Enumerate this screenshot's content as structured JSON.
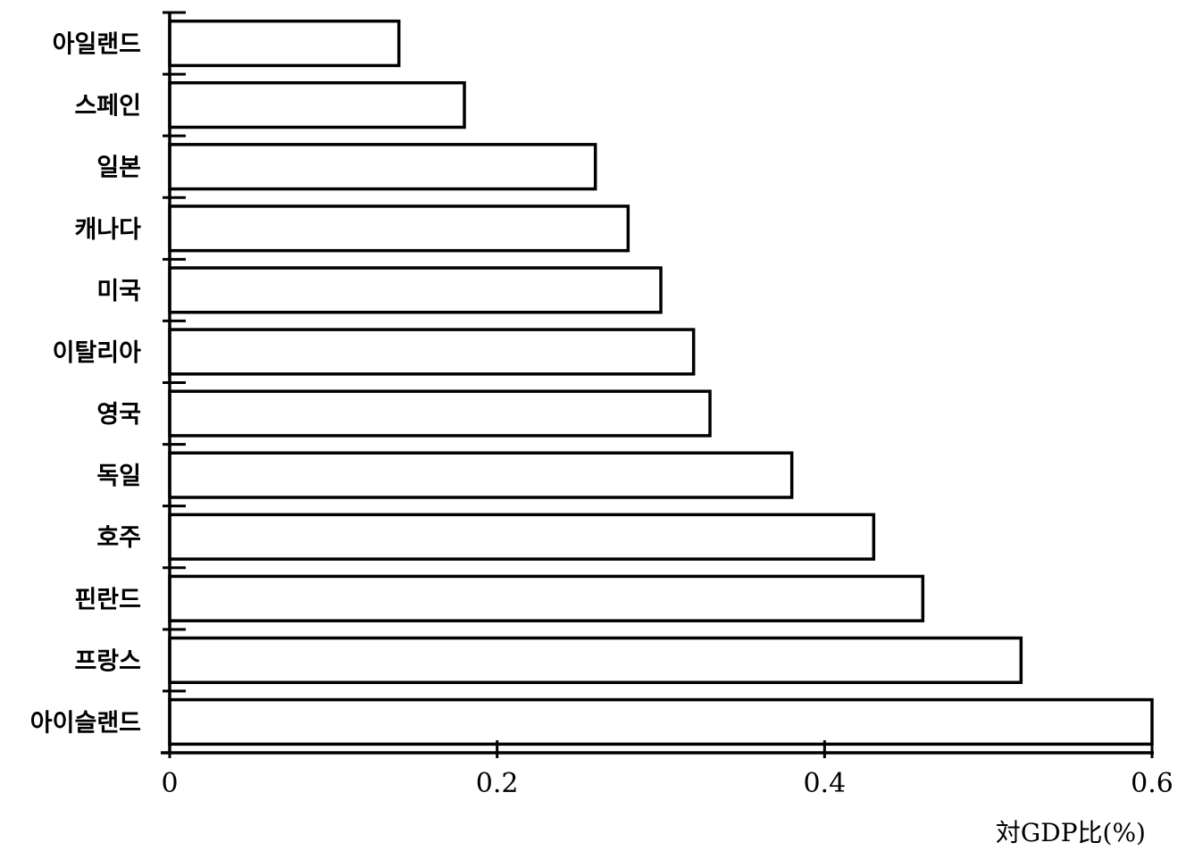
{
  "chart_data": {
    "type": "bar",
    "orientation": "horizontal",
    "categories": [
      "아일랜드",
      "스페인",
      "일본",
      "캐나다",
      "미국",
      "이탈리아",
      "영국",
      "독일",
      "호주",
      "핀란드",
      "프랑스",
      "아이슬랜드"
    ],
    "values": [
      0.14,
      0.18,
      0.26,
      0.28,
      0.3,
      0.32,
      0.33,
      0.38,
      0.43,
      0.46,
      0.52,
      0.6
    ],
    "xlabel": "対GDP比(%)",
    "ylabel": "",
    "xlim": [
      0,
      0.6
    ],
    "xticks": [
      "0",
      "0.2",
      "0.4",
      "0.6"
    ],
    "grid": false,
    "legend": "none",
    "bar_fill": "#ffffff",
    "bar_stroke": "#000000"
  }
}
